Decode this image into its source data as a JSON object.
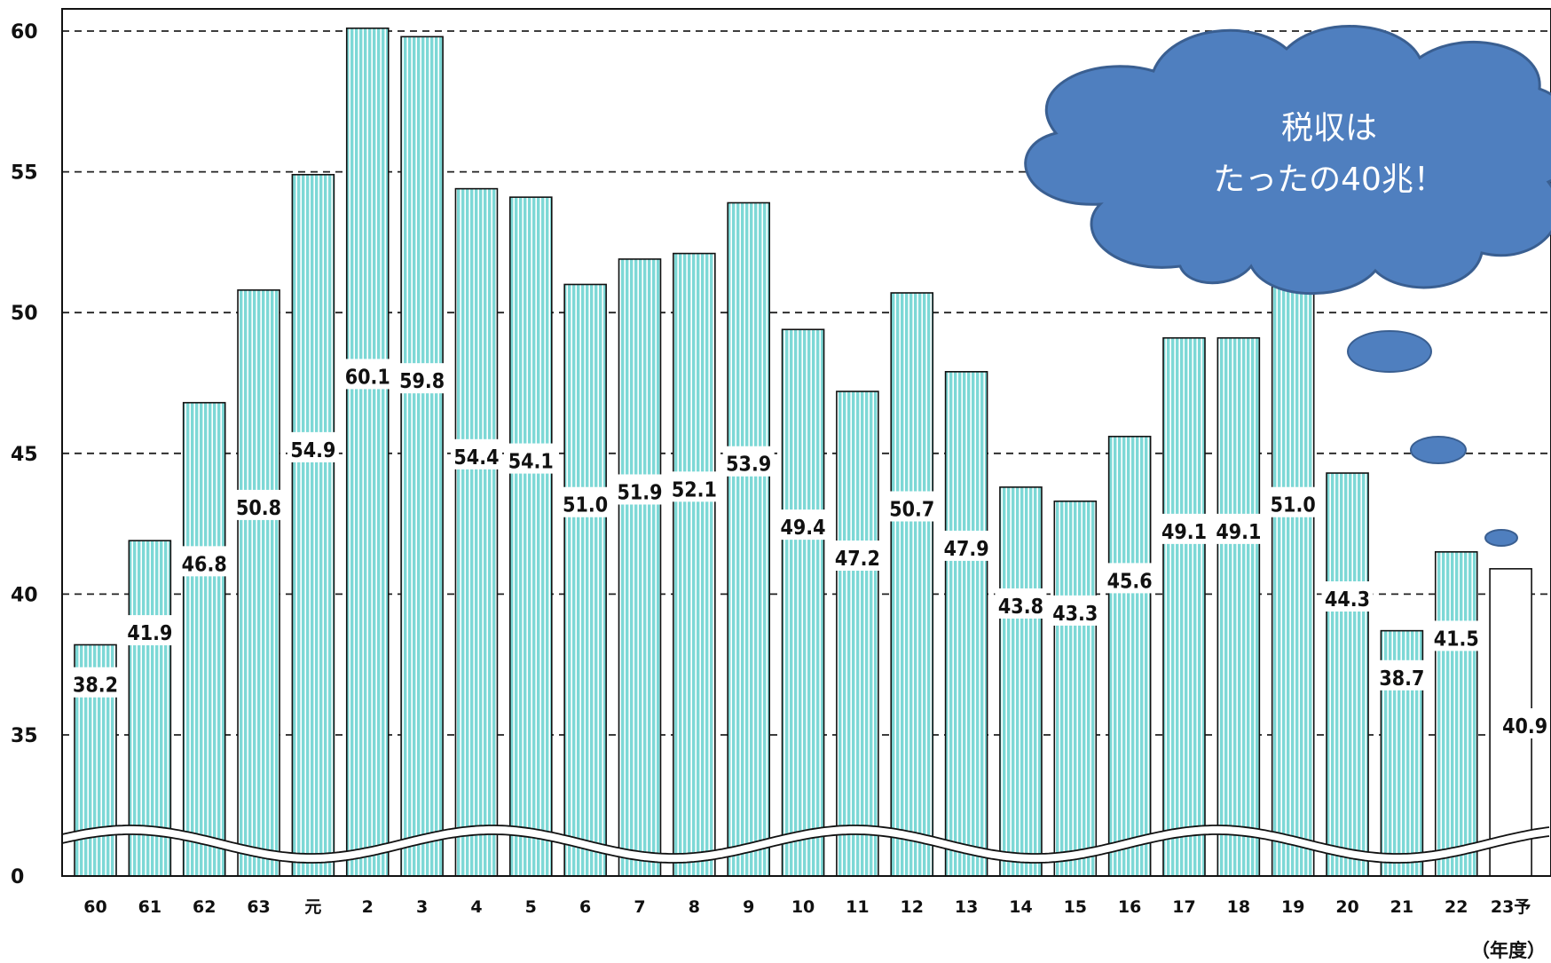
{
  "chart_data": {
    "type": "bar",
    "categories": [
      "60",
      "61",
      "62",
      "63",
      "元",
      "2",
      "3",
      "4",
      "5",
      "6",
      "7",
      "8",
      "9",
      "10",
      "11",
      "12",
      "13",
      "14",
      "15",
      "16",
      "17",
      "18",
      "19",
      "20",
      "21",
      "22",
      "23予"
    ],
    "values": [
      38.2,
      41.9,
      46.8,
      50.8,
      54.9,
      60.1,
      59.8,
      54.4,
      54.1,
      51.0,
      51.9,
      52.1,
      53.9,
      49.4,
      47.2,
      50.7,
      47.9,
      43.8,
      43.3,
      45.6,
      49.1,
      49.1,
      51.0,
      44.3,
      38.7,
      41.5,
      40.9
    ],
    "value_labels": [
      "38.2",
      "41.9",
      "46.8",
      "50.8",
      "54.9",
      "60.1",
      "59.8",
      "54.4",
      "54.1",
      "51.0",
      "51.9",
      "52.1",
      "53.9",
      "49.4",
      "47.2",
      "50.7",
      "47.9",
      "43.8",
      "43.3",
      "45.6",
      "49.1",
      "49.1",
      "51.0",
      "44.3",
      "38.7",
      "41.5",
      "40.9"
    ],
    "forecast_index": 26,
    "yticks": [
      0,
      35,
      40,
      45,
      50,
      55,
      60
    ],
    "ylim": [
      0,
      60
    ],
    "axis_break": true,
    "xlabel": "（年度）",
    "grid": "dashed horizontal",
    "bar_color": "#7dd8d6",
    "bar_stripe_color": "#ffffff",
    "forecast_bar_color": "#ffffff",
    "callout": {
      "lines": [
        "税収は",
        "たったの40兆！"
      ],
      "fill": "#4f7fbf",
      "stroke": "#3a5f91",
      "text_color": "#ffffff"
    }
  }
}
